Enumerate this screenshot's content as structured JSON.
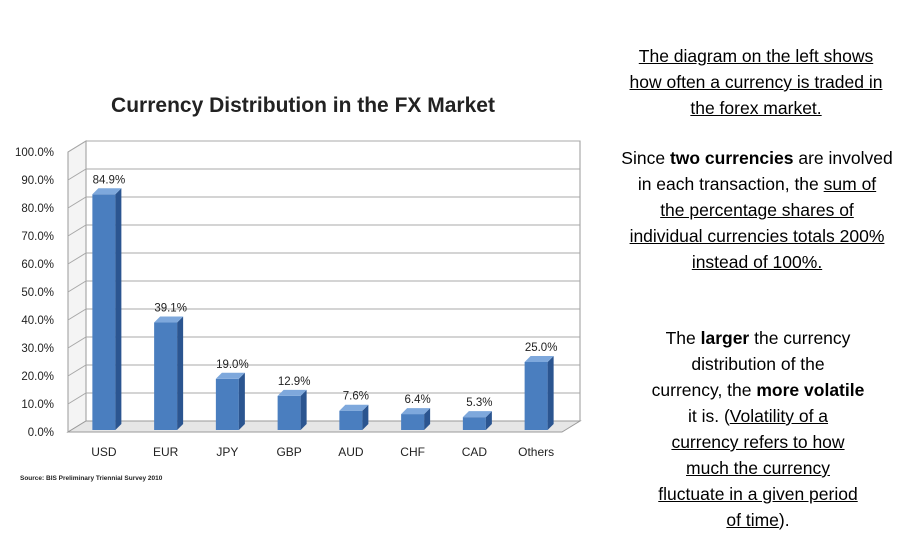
{
  "chart_data": {
    "type": "bar",
    "title": "Currency Distribution in the FX Market",
    "categories": [
      "USD",
      "EUR",
      "JPY",
      "GBP",
      "AUD",
      "CHF",
      "CAD",
      "Others"
    ],
    "values": [
      84.9,
      39.1,
      19.0,
      12.9,
      7.6,
      6.4,
      5.3,
      25.0
    ],
    "value_labels": [
      "84.9%",
      "39.1%",
      "19.0%",
      "12.9%",
      "7.6%",
      "6.4%",
      "5.3%",
      "25.0%"
    ],
    "y_ticks": [
      "0.0%",
      "10.0%",
      "20.0%",
      "30.0%",
      "40.0%",
      "50.0%",
      "60.0%",
      "70.0%",
      "80.0%",
      "90.0%",
      "100.0%"
    ],
    "ylim": [
      0,
      100
    ],
    "grid": true,
    "legend": "none",
    "bar_color": "#4a7ebf",
    "source": "Source: BIS Preliminary Triennial Survey 2010"
  },
  "side_text": {
    "p1_line1": "The diagram on the left shows",
    "p1_line2": "how often a currency is traded in",
    "p1_line3": "the forex market.",
    "p2_line1_pre": "Since ",
    "p2_line1_bold": "two currencies",
    "p2_line1_post": " are involved",
    "p2_line2_pre": "in each transaction, the ",
    "p2_line2_u": "sum of",
    "p2_line3": "the percentage shares of",
    "p2_line4": "individual currencies totals 200%",
    "p2_line5": "instead of 100%.",
    "p3_line1_pre": "The ",
    "p3_line1_bold": "larger",
    "p3_line1_post": " the currency",
    "p3_line2": "distribution of the",
    "p3_line3_pre": "currency, the ",
    "p3_line3_bold": "more volatile",
    "p3_line4_pre": "it is. (",
    "p3_line4_u": "Volatility of a",
    "p3_line5": "currency refers to how",
    "p3_line6": "much the currency",
    "p3_line7": "fluctuate in a given period",
    "p3_line8_u": "of time",
    "p3_line8_post": ")."
  }
}
